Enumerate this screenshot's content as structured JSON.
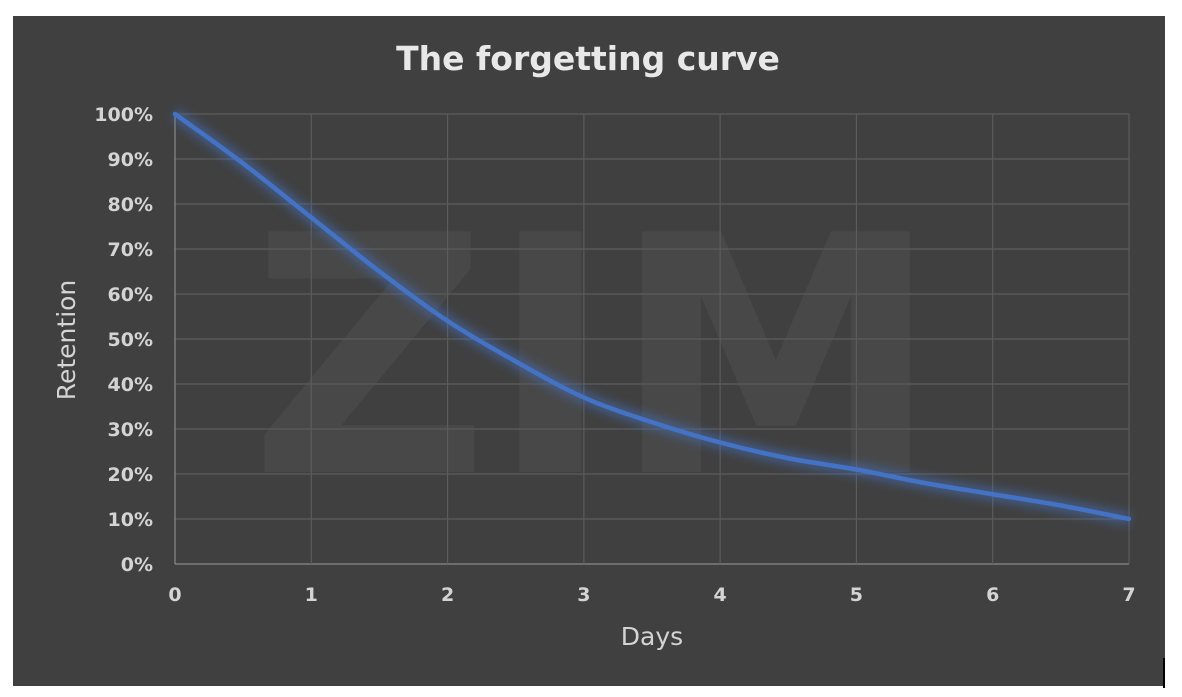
{
  "chart_data": {
    "type": "line",
    "title": "The forgetting curve",
    "xlabel": "Days",
    "ylabel": "Retention",
    "x": [
      0,
      0.5,
      1,
      1.5,
      2,
      2.5,
      3,
      3.5,
      4,
      4.5,
      5,
      5.5,
      6,
      6.5,
      7
    ],
    "x_ticks": [
      "0",
      "1",
      "2",
      "3",
      "4",
      "5",
      "6",
      "7"
    ],
    "y_ticks": [
      "0%",
      "10%",
      "20%",
      "30%",
      "40%",
      "50%",
      "60%",
      "70%",
      "80%",
      "90%",
      "100%"
    ],
    "xlim": [
      0,
      7
    ],
    "ylim": [
      0,
      100
    ],
    "grid": true,
    "series": [
      {
        "values": [
          100,
          89,
          77,
          65,
          54,
          45,
          37,
          31.5,
          27,
          23.5,
          21,
          18,
          15.5,
          13,
          10
        ],
        "color": "#4472c4"
      }
    ],
    "watermark": "ZIM"
  }
}
